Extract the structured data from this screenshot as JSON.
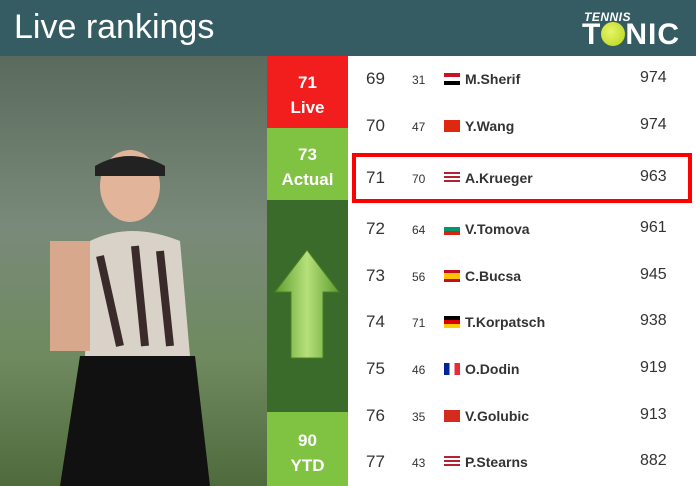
{
  "header": {
    "title": "Live rankings",
    "logo_top": "TENNIS",
    "logo_bottom_pre": "T",
    "logo_bottom_post": "NIC"
  },
  "side": {
    "live_rank": "71",
    "live_label": "Live",
    "actual_rank": "73",
    "actual_label": "Actual",
    "ytd_rank": "90",
    "ytd_label": "YTD",
    "trend": "up"
  },
  "colors": {
    "header": "#365c63",
    "live": "#f21d1d",
    "actual": "#80c241",
    "highlight": "#ff0000"
  },
  "rows": [
    {
      "rank": "69",
      "prev": "31",
      "country": "EGY",
      "name": "M.Sherif",
      "points": "974"
    },
    {
      "rank": "70",
      "prev": "47",
      "country": "CHN",
      "name": "Y.Wang",
      "points": "974"
    },
    {
      "rank": "71",
      "prev": "70",
      "country": "USA",
      "name": "A.Krueger",
      "points": "963",
      "highlighted": true
    },
    {
      "rank": "72",
      "prev": "64",
      "country": "BUL",
      "name": "V.Tomova",
      "points": "961"
    },
    {
      "rank": "73",
      "prev": "56",
      "country": "ESP",
      "name": "C.Bucsa",
      "points": "945"
    },
    {
      "rank": "74",
      "prev": "71",
      "country": "GER",
      "name": "T.Korpatsch",
      "points": "938"
    },
    {
      "rank": "75",
      "prev": "46",
      "country": "FRA",
      "name": "O.Dodin",
      "points": "919"
    },
    {
      "rank": "76",
      "prev": "35",
      "country": "SUI",
      "name": "V.Golubic",
      "points": "913"
    },
    {
      "rank": "77",
      "prev": "43",
      "country": "USA",
      "name": "P.Stearns",
      "points": "882"
    }
  ]
}
